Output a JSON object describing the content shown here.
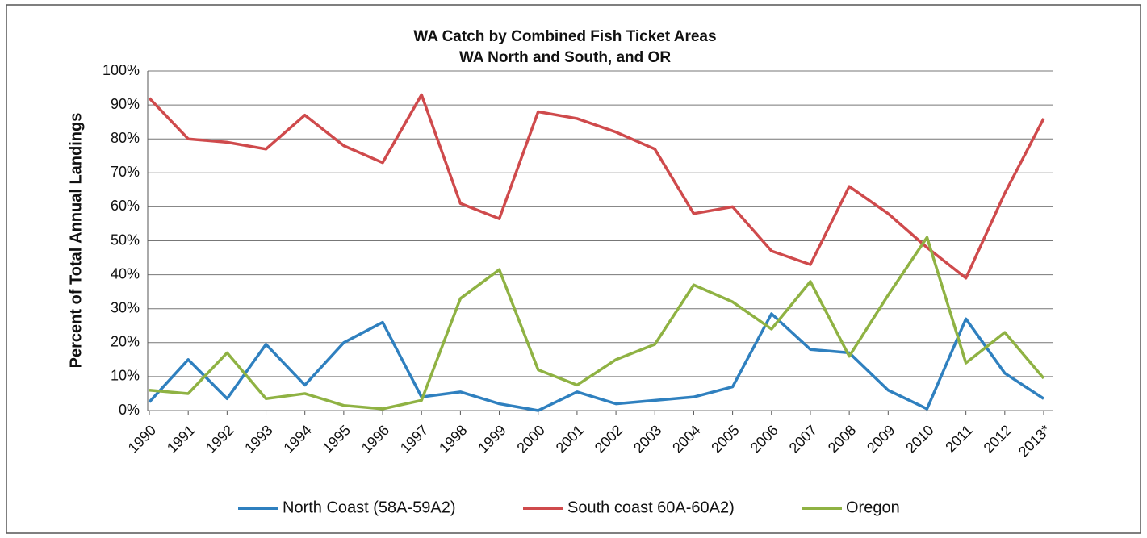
{
  "chart_data": {
    "type": "line",
    "title": "WA Catch by Combined  Fish Ticket  Areas",
    "subtitle": "WA North and South, and OR",
    "y_label": "Percent of Total Annual Landings",
    "categories": [
      "1990",
      "1991",
      "1992",
      "1993",
      "1994",
      "1995",
      "1996",
      "1997",
      "1998",
      "1999",
      "2000",
      "2001",
      "2002",
      "2003",
      "2004",
      "2005",
      "2006",
      "2007",
      "2008",
      "2009",
      "2010",
      "2011",
      "2012",
      "2013*"
    ],
    "series": [
      {
        "name": "North Coast (58A-59A2)",
        "color": "#2f80bf",
        "values": [
          2.5,
          15,
          3.5,
          19.5,
          7.5,
          20,
          26,
          4,
          5.5,
          2,
          0,
          5.5,
          2,
          3,
          4,
          7,
          28.5,
          18,
          17,
          6,
          0.5,
          27,
          11,
          3.5
        ]
      },
      {
        "name": "South coast 60A-60A2)",
        "color": "#cf4a4c",
        "values": [
          92,
          80,
          79,
          77,
          87,
          78,
          73,
          93,
          61,
          56.5,
          88,
          86,
          82,
          77,
          58,
          60,
          47,
          43,
          66,
          58,
          48,
          39,
          64,
          86
        ]
      },
      {
        "name": "Oregon",
        "color": "#8fb243",
        "values": [
          6,
          5,
          17,
          3.5,
          5,
          1.5,
          0.5,
          3,
          33,
          41.5,
          12,
          7.5,
          15,
          19.5,
          37,
          32,
          24,
          38,
          16,
          34,
          51,
          14,
          23,
          9.5
        ]
      }
    ],
    "ylim": [
      0,
      100
    ],
    "yticks": [
      {
        "value": 0,
        "label": "0%"
      },
      {
        "value": 10,
        "label": "10%"
      },
      {
        "value": 20,
        "label": "20%"
      },
      {
        "value": 30,
        "label": "30%"
      },
      {
        "value": 40,
        "label": "40%"
      },
      {
        "value": 50,
        "label": "50%"
      },
      {
        "value": 60,
        "label": "60%"
      },
      {
        "value": 70,
        "label": "70%"
      },
      {
        "value": 80,
        "label": "80%"
      },
      {
        "value": 90,
        "label": "90%"
      },
      {
        "value": 100,
        "label": "100%"
      }
    ],
    "grid": true,
    "legend": "bottom"
  }
}
